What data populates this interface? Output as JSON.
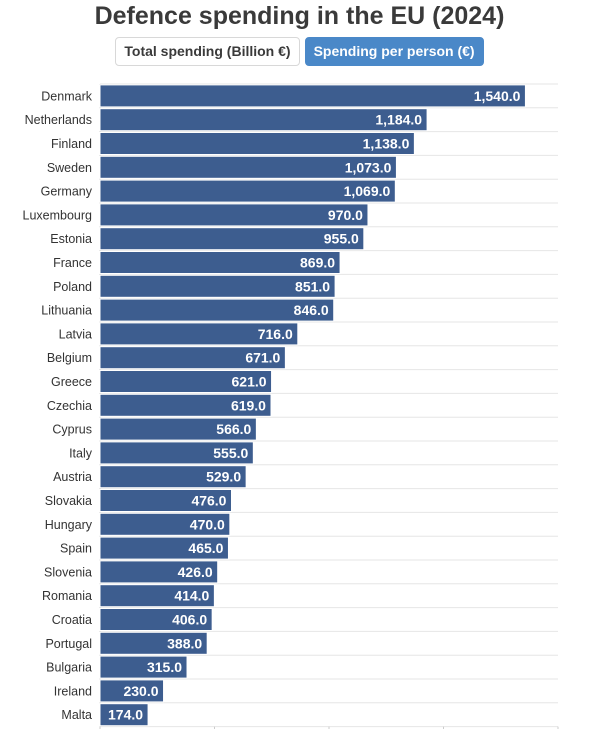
{
  "title": "Defence spending in the EU (2024)",
  "tabs": [
    {
      "label": "Total spending (Billion €)",
      "active": false
    },
    {
      "label": "Spending per person (€)",
      "active": true
    }
  ],
  "colors": {
    "bar": "#3d5d8f",
    "bar_border": "#ffffff",
    "tab_active": "#4a88c8",
    "grid": "#e6e6e6",
    "title": "#3a3a3a"
  },
  "chart_data": {
    "type": "bar",
    "orientation": "horizontal",
    "title": "Defence spending in the EU (2024)",
    "categories": [
      "Denmark",
      "Netherlands",
      "Finland",
      "Sweden",
      "Germany",
      "Luxembourg",
      "Estonia",
      "France",
      "Poland",
      "Lithuania",
      "Latvia",
      "Belgium",
      "Greece",
      "Czechia",
      "Cyprus",
      "Italy",
      "Austria",
      "Slovakia",
      "Hungary",
      "Spain",
      "Slovenia",
      "Romania",
      "Croatia",
      "Portugal",
      "Bulgaria",
      "Ireland",
      "Malta"
    ],
    "values": [
      1540.0,
      1184.0,
      1138.0,
      1073.0,
      1069.0,
      970.0,
      955.0,
      869.0,
      851.0,
      846.0,
      716.0,
      671.0,
      621.0,
      619.0,
      566.0,
      555.0,
      529.0,
      476.0,
      470.0,
      465.0,
      426.0,
      414.0,
      406.0,
      388.0,
      315.0,
      230.0,
      174.0
    ],
    "value_labels": [
      "1,540.0",
      "1,184.0",
      "1,138.0",
      "1,073.0",
      "1,069.0",
      "970.0",
      "955.0",
      "869.0",
      "851.0",
      "846.0",
      "716.0",
      "671.0",
      "621.0",
      "619.0",
      "566.0",
      "555.0",
      "529.0",
      "476.0",
      "470.0",
      "465.0",
      "426.0",
      "414.0",
      "406.0",
      "388.0",
      "315.0",
      "230.0",
      "174.0"
    ],
    "xlim": [
      0,
      1600
    ],
    "grid": true
  }
}
